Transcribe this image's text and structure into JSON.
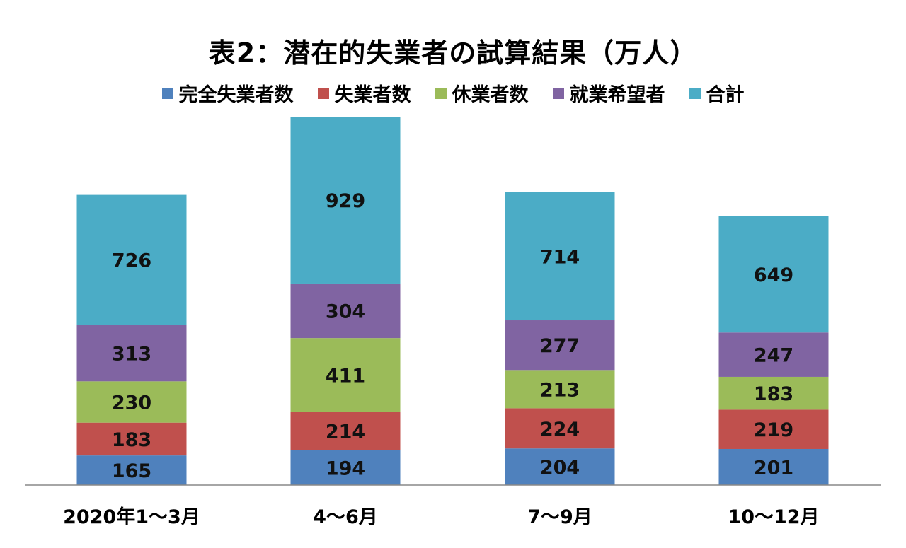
{
  "chart_data": {
    "type": "bar",
    "stacked": true,
    "title": "表2：潜在的失業者の試算結果（万人）",
    "categories": [
      "2020年1〜3月",
      "4〜6月",
      "7〜9月",
      "10〜12月"
    ],
    "series": [
      {
        "name": "完全失業者数",
        "color": "#4f81bd",
        "values": [
          165,
          194,
          204,
          201
        ]
      },
      {
        "name": "失業者数",
        "color": "#c0504d",
        "values": [
          183,
          214,
          224,
          219
        ]
      },
      {
        "name": "休業者数",
        "color": "#9bbb59",
        "values": [
          230,
          411,
          213,
          183
        ]
      },
      {
        "name": "就業希望者",
        "color": "#8064a2",
        "values": [
          313,
          304,
          277,
          247
        ]
      },
      {
        "name": "合計",
        "color": "#4bacc6",
        "values": [
          726,
          929,
          714,
          649
        ]
      }
    ],
    "legend_position": "top",
    "grid": false
  }
}
